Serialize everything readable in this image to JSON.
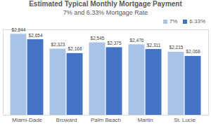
{
  "chart_data": {
    "type": "bar",
    "title": "Estimated Typical Monthly Mortgage Payment",
    "subtitle": "7% and 6.33% Mortgage Rate",
    "categories": [
      "Miami-Dade",
      "Broward",
      "Palm Beach",
      "Martin",
      "St. Lucie"
    ],
    "series": [
      {
        "name": "7%",
        "color": "#a9c3e8",
        "values": [
          2844,
          2323,
          2545,
          2476,
          2215
        ],
        "value_labels": [
          "$2,844",
          "$2,323",
          "$2,545",
          "$2,476",
          "$2,215"
        ]
      },
      {
        "name": "6.33%",
        "color": "#4472c4",
        "values": [
          2654,
          2168,
          2375,
          2311,
          2068
        ],
        "value_labels": [
          "$2,654",
          "$2,168",
          "$2,375",
          "$2,311",
          "$2,068"
        ]
      }
    ],
    "ylim": [
      0,
      3000
    ],
    "data_labels": true,
    "tick_labels": "x",
    "legend": "top-right",
    "grid": false
  }
}
